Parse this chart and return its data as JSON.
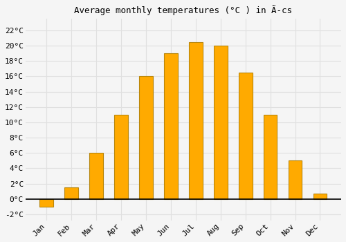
{
  "title": "Average monthly temperatures (°C ) in Ä­cs",
  "months": [
    "Jan",
    "Feb",
    "Mar",
    "Apr",
    "May",
    "Jun",
    "Jul",
    "Aug",
    "Sep",
    "Oct",
    "Nov",
    "Dec"
  ],
  "values": [
    -1.0,
    1.5,
    6.0,
    11.0,
    16.0,
    19.0,
    20.5,
    20.0,
    16.5,
    11.0,
    5.0,
    0.7
  ],
  "bar_color": "#FFAA00",
  "bar_edge_color": "#B8860B",
  "background_color": "#F5F5F5",
  "plot_bg_color": "#F5F5F5",
  "grid_color": "#E0E0E0",
  "yticks": [
    -2,
    0,
    2,
    4,
    6,
    8,
    10,
    12,
    14,
    16,
    18,
    20,
    22
  ],
  "ylim": [
    -2.8,
    23.5
  ],
  "title_fontsize": 9,
  "tick_fontsize": 8,
  "font_family": "monospace"
}
